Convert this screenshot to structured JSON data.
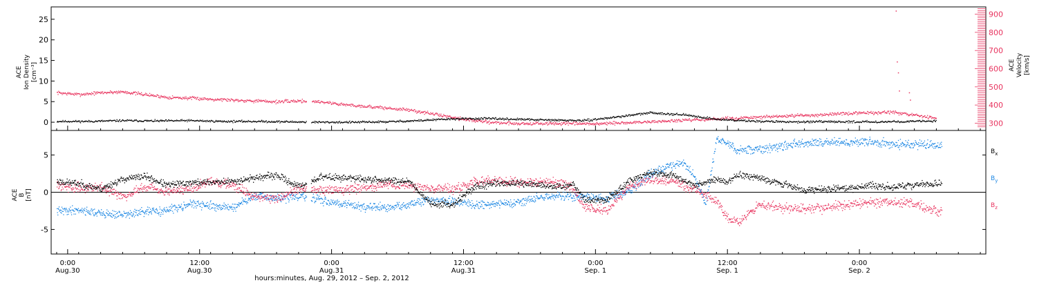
{
  "colors": {
    "black": "#000000",
    "pink": "#e8335e",
    "blue": "#1c87e3"
  },
  "chart_data": [
    {
      "type": "scatter",
      "panel": "top",
      "ylabel_lines": [
        "ACE",
        "Ion Density",
        "[cm⁻³]"
      ],
      "y2label_lines": [
        "ACE",
        "Velocity",
        "[km/s]"
      ],
      "ylim": [
        -2,
        28
      ],
      "yticks": [
        0,
        5,
        10,
        15,
        20,
        25
      ],
      "y2lim": [
        260,
        940
      ],
      "y2ticks": [
        300,
        400,
        500,
        600,
        700,
        800,
        900
      ],
      "xlim_hours": [
        -0.5,
        84.5
      ],
      "series": [
        {
          "axis": "left",
          "color": "black",
          "x": [
            0,
            3,
            6,
            9,
            12,
            15,
            18,
            21,
            24,
            27,
            30,
            33,
            36,
            39,
            42,
            45,
            48,
            51,
            54,
            57,
            60,
            63,
            66,
            69,
            72,
            75,
            78,
            80
          ],
          "y": [
            0.3,
            0.3,
            0.5,
            0.4,
            0.5,
            0.3,
            0.3,
            0.2,
            0.1,
            0.1,
            0.2,
            0.5,
            0.9,
            1.0,
            0.8,
            0.6,
            0.5,
            1.4,
            2.4,
            1.9,
            0.8,
            0.4,
            0.2,
            0.2,
            0.2,
            0.2,
            0.3,
            0.4
          ]
        },
        {
          "axis": "right",
          "color": "pink",
          "x": [
            0,
            2,
            4,
            6,
            8,
            10,
            12,
            14,
            16,
            18,
            20,
            22,
            24,
            26,
            28,
            30,
            32,
            34,
            36,
            38,
            40,
            42,
            44,
            46,
            48,
            50,
            52,
            54,
            56,
            58,
            60,
            62,
            64,
            66,
            68,
            70,
            72,
            74,
            76,
            78,
            80
          ],
          "y": [
            470,
            460,
            470,
            475,
            460,
            445,
            440,
            435,
            430,
            425,
            420,
            425,
            420,
            405,
            395,
            385,
            375,
            355,
            335,
            315,
            305,
            300,
            300,
            300,
            298,
            300,
            305,
            310,
            315,
            320,
            325,
            330,
            335,
            340,
            345,
            350,
            355,
            360,
            362,
            345,
            330
          ]
        },
        {
          "axis": "right",
          "color": "pink",
          "note": "spikes",
          "x": [
            76.3,
            76.4,
            76.5,
            76.6,
            77.5,
            77.6
          ],
          "y": [
            920,
            640,
            580,
            480,
            470,
            430
          ]
        }
      ]
    },
    {
      "type": "scatter",
      "panel": "bottom",
      "ylabel_lines": [
        "ACE",
        "B",
        "[nT]"
      ],
      "ylim": [
        -8.3,
        8.3
      ],
      "yticks": [
        -5,
        0,
        5
      ],
      "xlim_hours": [
        -0.5,
        84.5
      ],
      "series": [
        {
          "name": "Bx",
          "label_main": "B",
          "label_sub": "x",
          "color": "black",
          "x": [
            0,
            2,
            4,
            6,
            8,
            10,
            12,
            14,
            16,
            18,
            20,
            22,
            24,
            26,
            28,
            30,
            32,
            34,
            36,
            38,
            40,
            42,
            44,
            46,
            47,
            48,
            50,
            52,
            54,
            56,
            58,
            60,
            61,
            62,
            64,
            66,
            68,
            70,
            72,
            74,
            76,
            78,
            80
          ],
          "y": [
            1.5,
            1.2,
            0.5,
            1.8,
            2.2,
            1.0,
            1.3,
            1.4,
            1.5,
            2.0,
            2.3,
            0.8,
            2.1,
            2.0,
            1.8,
            1.6,
            1.6,
            -1.5,
            -1.6,
            0.8,
            1.3,
            1.2,
            1.0,
            0.8,
            1.2,
            -1.0,
            -1.0,
            1.5,
            2.7,
            2.3,
            1.0,
            1.8,
            1.4,
            2.4,
            2.0,
            1.2,
            0.3,
            0.5,
            0.6,
            1.0,
            0.7,
            1.0,
            1.2
          ]
        },
        {
          "name": "By",
          "label_main": "B",
          "label_sub": "y",
          "color": "blue",
          "x": [
            0,
            2,
            4,
            6,
            8,
            10,
            12,
            14,
            16,
            18,
            20,
            22,
            24,
            26,
            28,
            30,
            32,
            34,
            36,
            38,
            40,
            42,
            44,
            46,
            48,
            50,
            52,
            54,
            56,
            57,
            58,
            59,
            60,
            61,
            62,
            64,
            66,
            68,
            70,
            72,
            74,
            76,
            78,
            80
          ],
          "y": [
            -2.5,
            -2.3,
            -2.8,
            -3.0,
            -2.6,
            -2.4,
            -1.5,
            -1.8,
            -2.0,
            -0.5,
            -0.8,
            -0.5,
            -1.0,
            -1.5,
            -1.9,
            -2.1,
            -1.6,
            -1.0,
            -1.2,
            -1.6,
            -1.5,
            -1.3,
            -0.6,
            -0.5,
            -0.6,
            -0.8,
            0.2,
            2.5,
            3.8,
            4.0,
            2.0,
            -1.5,
            7.2,
            6.5,
            5.6,
            5.9,
            6.3,
            6.6,
            6.8,
            6.7,
            6.8,
            6.5,
            6.4,
            6.4
          ]
        },
        {
          "name": "Bz",
          "label_main": "B",
          "label_sub": "z",
          "color": "pink",
          "x": [
            0,
            2,
            4,
            6,
            8,
            10,
            12,
            14,
            16,
            18,
            20,
            22,
            24,
            26,
            28,
            30,
            32,
            34,
            36,
            38,
            40,
            42,
            44,
            46,
            47,
            48,
            50,
            52,
            54,
            56,
            58,
            60,
            61,
            62,
            64,
            66,
            68,
            70,
            72,
            74,
            76,
            78,
            80
          ],
          "y": [
            1.0,
            0.6,
            0.8,
            -0.5,
            0.8,
            0.2,
            0.5,
            1.5,
            1.0,
            -0.5,
            -0.8,
            0.5,
            0.3,
            0.4,
            0.6,
            1.2,
            0.9,
            0.6,
            0.4,
            1.5,
            1.6,
            1.4,
            1.5,
            1.3,
            0.5,
            -2.0,
            -2.5,
            0.8,
            1.8,
            1.5,
            0.5,
            -1.2,
            -3.5,
            -4.0,
            -1.5,
            -2.0,
            -2.3,
            -2.0,
            -1.6,
            -1.4,
            -1.3,
            -1.5,
            -2.5
          ]
        }
      ]
    }
  ],
  "x_axis": {
    "ticks": [
      {
        "hours": 1,
        "time": "0:00",
        "date": "Aug.30"
      },
      {
        "hours": 13,
        "time": "12:00",
        "date": "Aug.30"
      },
      {
        "hours": 25,
        "time": "0:00",
        "date": "Aug.31"
      },
      {
        "hours": 37,
        "time": "12:00",
        "date": "Aug.31"
      },
      {
        "hours": 49,
        "time": "0:00",
        "date": "Sep. 1"
      },
      {
        "hours": 61,
        "time": "12:00",
        "date": "Sep. 1"
      },
      {
        "hours": 73,
        "time": "0:00",
        "date": "Sep. 2"
      }
    ],
    "title": "hours:minutes, Aug. 29, 2012 – Sep.  2, 2012"
  }
}
